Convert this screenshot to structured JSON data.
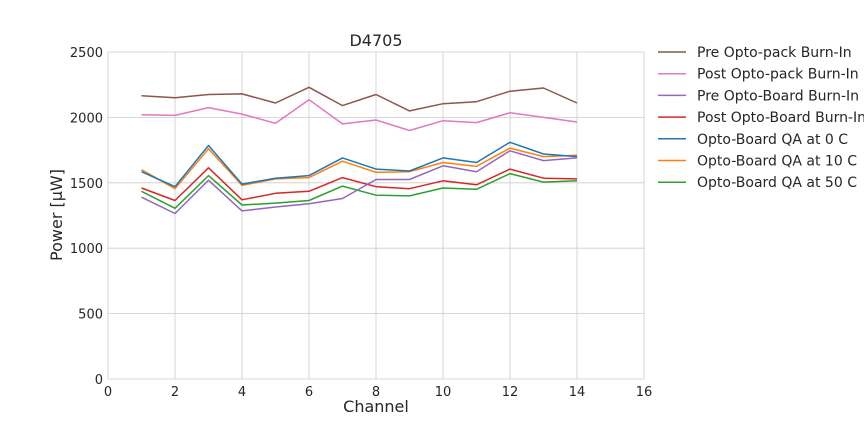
{
  "chart_data": {
    "type": "line",
    "title": "D4705",
    "xlabel": "Channel",
    "ylabel": "Power [µW]",
    "xlim": [
      0,
      16
    ],
    "ylim": [
      0,
      2500
    ],
    "xticks": [
      "0",
      "2",
      "4",
      "6",
      "8",
      "10",
      "12",
      "14",
      "16"
    ],
    "yticks": [
      "0",
      "500",
      "1000",
      "1500",
      "2000",
      "2500"
    ],
    "grid": true,
    "legend_position": "outside-right",
    "x": [
      1,
      2,
      3,
      4,
      5,
      6,
      7,
      8,
      9,
      10,
      11,
      12,
      13,
      14
    ],
    "series": [
      {
        "name": "Pre Opto-pack Burn-In",
        "color": "#8c564b",
        "values": [
          2165,
          2150,
          2175,
          2180,
          2110,
          2230,
          2090,
          2175,
          2050,
          2105,
          2120,
          2200,
          2225,
          2110
        ]
      },
      {
        "name": "Post Opto-pack Burn-In",
        "color": "#e377c2",
        "values": [
          2020,
          2015,
          2075,
          2025,
          1955,
          2135,
          1950,
          1980,
          1900,
          1975,
          1960,
          2035,
          2000,
          1965
        ]
      },
      {
        "name": "Pre Opto-Board Burn-In",
        "color": "#9467bd",
        "values": [
          1390,
          1265,
          1520,
          1285,
          1315,
          1340,
          1380,
          1525,
          1525,
          1630,
          1585,
          1745,
          1670,
          1690
        ]
      },
      {
        "name": "Post Opto-Board Burn-In",
        "color": "#d62728",
        "values": [
          1460,
          1365,
          1615,
          1370,
          1420,
          1435,
          1540,
          1470,
          1455,
          1515,
          1485,
          1605,
          1535,
          1530
        ]
      },
      {
        "name": "Opto-Board QA at 0 C",
        "color": "#1f77b4",
        "values": [
          1585,
          1470,
          1785,
          1490,
          1535,
          1555,
          1690,
          1605,
          1590,
          1690,
          1655,
          1810,
          1720,
          1700
        ]
      },
      {
        "name": "Opto-Board QA at 10 C",
        "color": "#ff7f0e",
        "values": [
          1600,
          1455,
          1760,
          1480,
          1530,
          1540,
          1665,
          1580,
          1585,
          1655,
          1625,
          1765,
          1700,
          1710
        ]
      },
      {
        "name": "Opto-Board QA at 50 C",
        "color": "#2ca02c",
        "values": [
          1435,
          1305,
          1555,
          1330,
          1345,
          1365,
          1475,
          1405,
          1400,
          1460,
          1450,
          1570,
          1505,
          1515
        ]
      }
    ]
  }
}
